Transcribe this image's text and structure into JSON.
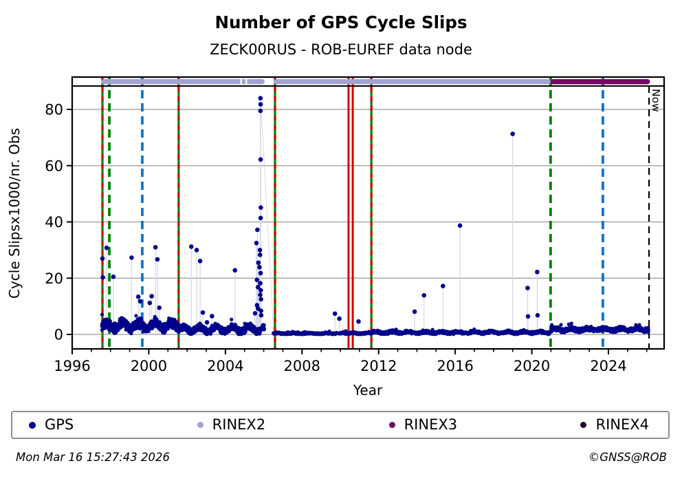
{
  "title": "Number of GPS Cycle Slips",
  "subtitle": "ZECK00RUS - ROB-EUREF data node",
  "footer": {
    "timestamp": "Mon Mar 16 15:27:43 2026",
    "copyright": "©GNSS@ROB"
  },
  "legend": [
    {
      "label": "GPS",
      "color": "#00008B"
    },
    {
      "label": "RINEX2",
      "color": "#A3A3D0"
    },
    {
      "label": "RINEX3",
      "color": "#750663"
    },
    {
      "label": "RINEX4",
      "color": "#250025"
    }
  ],
  "colors": {
    "gps": "#00008B",
    "rinex2": "#A3A3D0",
    "rinex3": "#750663",
    "rinex4": "#250025",
    "green": "#008000",
    "red": "#D40000",
    "blue": "#1273C4",
    "black": "#000000",
    "grid": "#A9A9A9",
    "stem": "#D7D7EA"
  },
  "chart_data": {
    "type": "scatter",
    "title": "Number of GPS Cycle Slips",
    "subtitle": "ZECK00RUS - ROB-EUREF data node",
    "xlabel": "Year",
    "ylabel": "Cycle Slipsx1000/nr. Obs",
    "xlim": [
      1996,
      2026.9
    ],
    "ylim": [
      -5.2,
      91.3
    ],
    "x_major_ticks": [
      1996,
      2000,
      2004,
      2008,
      2012,
      2016,
      2020,
      2024
    ],
    "x_minor_step": 1,
    "y_major_ticks": [
      0,
      20,
      40,
      60,
      80
    ],
    "grid": "horizontal-only",
    "legend_position": "bottom",
    "now_label": "Now",
    "now_year": 2026.12,
    "event_lines": [
      {
        "year": 1997.58,
        "style": "green-red"
      },
      {
        "year": 1997.94,
        "style": "green-dashed"
      },
      {
        "year": 1999.66,
        "style": "blue-dashed"
      },
      {
        "year": 2001.56,
        "style": "green-red"
      },
      {
        "year": 2006.59,
        "style": "green-red"
      },
      {
        "year": 2010.43,
        "style": "red-solid"
      },
      {
        "year": 2010.65,
        "style": "red-solid"
      },
      {
        "year": 2011.62,
        "style": "green-red"
      },
      {
        "year": 2020.98,
        "style": "green-dashed"
      },
      {
        "year": 2023.71,
        "style": "blue-dashed"
      },
      {
        "year": 2026.12,
        "style": "now-dashed"
      }
    ],
    "rinex_bars": [
      {
        "type": "rinex2",
        "start": 1997.52,
        "end": 2006.05,
        "gaps": [
          [
            2004.78,
            2004.86
          ],
          [
            2005.05,
            2005.13
          ]
        ]
      },
      {
        "type": "rinex2",
        "start": 2006.52,
        "end": 2020.98,
        "gaps": []
      },
      {
        "type": "rinex3",
        "start": 2020.98,
        "end": 2026.17,
        "gaps": []
      }
    ],
    "outliers": [
      [
        1997.58,
        27.0
      ],
      [
        1997.6,
        20.3
      ],
      [
        1997.8,
        30.8
      ],
      [
        1998.15,
        20.5
      ],
      [
        1999.1,
        27.3
      ],
      [
        1999.45,
        13.4
      ],
      [
        1999.55,
        11.8
      ],
      [
        2000.05,
        11.2
      ],
      [
        2000.15,
        13.6
      ],
      [
        2000.35,
        31.0
      ],
      [
        2000.45,
        26.7
      ],
      [
        2000.55,
        9.5
      ],
      [
        2002.22,
        31.2
      ],
      [
        2002.5,
        30.0
      ],
      [
        2002.68,
        26.1
      ],
      [
        2002.82,
        7.8
      ],
      [
        2003.04,
        4.3
      ],
      [
        2003.3,
        6.5
      ],
      [
        2004.5,
        22.8
      ],
      [
        2005.55,
        7.5
      ],
      [
        2005.62,
        32.5
      ],
      [
        2005.65,
        19.4
      ],
      [
        2005.65,
        10.4
      ],
      [
        2005.67,
        37.2
      ],
      [
        2005.7,
        16.8
      ],
      [
        2005.7,
        9.2
      ],
      [
        2005.72,
        25.5
      ],
      [
        2005.78,
        23.9
      ],
      [
        2005.8,
        30.0
      ],
      [
        2005.81,
        28.3
      ],
      [
        2005.82,
        18.2
      ],
      [
        2005.82,
        14.1
      ],
      [
        2005.83,
        84.0
      ],
      [
        2005.83,
        79.5
      ],
      [
        2005.84,
        81.8
      ],
      [
        2005.84,
        62.2
      ],
      [
        2005.84,
        41.4
      ],
      [
        2005.84,
        21.8
      ],
      [
        2005.85,
        45.1
      ],
      [
        2005.85,
        15.7
      ],
      [
        2005.86,
        12.5
      ],
      [
        2005.86,
        8.4
      ],
      [
        2005.87,
        6.8
      ],
      [
        2009.72,
        7.4
      ],
      [
        2009.95,
        5.6
      ],
      [
        2010.95,
        4.6
      ],
      [
        2013.88,
        8.1
      ],
      [
        2014.37,
        13.9
      ],
      [
        2015.36,
        17.2
      ],
      [
        2016.25,
        38.7
      ],
      [
        2019.0,
        71.3
      ],
      [
        2019.78,
        16.5
      ],
      [
        2019.8,
        6.4
      ],
      [
        2020.28,
        22.2
      ],
      [
        2020.3,
        6.8
      ]
    ],
    "baseline_segments": [
      {
        "from": 1997.55,
        "to": 2001.56,
        "mean": 3.1,
        "spread": 2.0,
        "wave": 1.0,
        "n": 520
      },
      {
        "from": 2001.58,
        "to": 2006.05,
        "mean": 1.9,
        "spread": 1.4,
        "wave": 0.9,
        "n": 560
      },
      {
        "from": 2006.5,
        "to": 2010.43,
        "mean": 0.35,
        "spread": 0.35,
        "wave": 0.15,
        "n": 420
      },
      {
        "from": 2010.44,
        "to": 2011.62,
        "mean": 0.4,
        "spread": 0.4,
        "wave": 0.15,
        "n": 130
      },
      {
        "from": 2011.63,
        "to": 2020.97,
        "mean": 0.7,
        "spread": 0.6,
        "wave": 0.3,
        "n": 950
      },
      {
        "from": 2020.99,
        "to": 2026.1,
        "mean": 1.8,
        "spread": 0.9,
        "wave": 0.35,
        "n": 620
      }
    ],
    "gap_line": [
      [
        2005.84,
        84.0
      ],
      [
        2006.52,
        0.4
      ]
    ]
  }
}
